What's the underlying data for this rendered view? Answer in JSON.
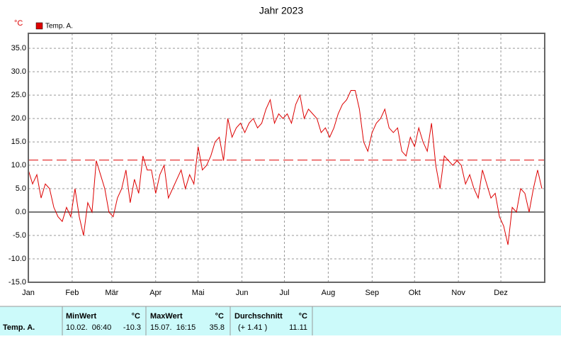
{
  "chart_data": {
    "type": "line",
    "title": "Jahr 2023",
    "y_unit": "°C",
    "series": [
      {
        "name": "Temp. A.",
        "color": "#dd0000",
        "x": [
          0,
          3,
          6,
          9,
          12,
          15,
          18,
          21,
          24,
          27,
          30,
          33,
          36,
          39,
          42,
          45,
          48,
          51,
          54,
          57,
          60,
          63,
          66,
          69,
          72,
          75,
          78,
          81,
          84,
          87,
          90,
          93,
          96,
          99,
          102,
          105,
          108,
          111,
          114,
          117,
          120,
          123,
          126,
          129,
          132,
          135,
          138,
          141,
          144,
          147,
          150,
          153,
          156,
          159,
          162,
          165,
          168,
          171,
          174,
          177,
          180,
          183,
          186,
          189,
          192,
          195,
          198,
          201,
          204,
          207,
          210,
          213,
          216,
          219,
          222,
          225,
          228,
          231,
          234,
          237,
          240,
          243,
          246,
          249,
          252,
          255,
          258,
          261,
          264,
          267,
          270,
          273,
          276,
          279,
          282,
          285,
          288,
          291,
          294,
          297,
          300,
          303,
          306,
          309,
          312,
          315,
          318,
          321,
          324,
          327,
          330,
          333,
          336,
          339,
          342,
          345,
          348,
          351,
          354,
          357,
          360,
          363
        ],
        "values": [
          9,
          6,
          8,
          3,
          6,
          5,
          1,
          -1,
          -2,
          1,
          -1,
          5,
          -1,
          -5,
          2,
          0,
          11,
          8,
          5,
          0,
          -1,
          3,
          5,
          9,
          2,
          7,
          4,
          12,
          9,
          9,
          4,
          8,
          10,
          3,
          5,
          7,
          9,
          5,
          8,
          6,
          14,
          9,
          10,
          12,
          15,
          16,
          11,
          20,
          16,
          18,
          19,
          17,
          19,
          20,
          18,
          19,
          22,
          24,
          19,
          21,
          20,
          21,
          19,
          23,
          25,
          20,
          22,
          21,
          20,
          17,
          18,
          16,
          18,
          21,
          23,
          24,
          26,
          26,
          22,
          15,
          13,
          17,
          19,
          20,
          22,
          18,
          17,
          18,
          13,
          12,
          16,
          14,
          18,
          15,
          13,
          19,
          10,
          5,
          12,
          11,
          10,
          11,
          10,
          6,
          8,
          5,
          3,
          9,
          6,
          3,
          4,
          -1,
          -3,
          -7,
          1,
          0,
          5,
          4,
          0,
          5,
          9,
          5
        ]
      }
    ],
    "xlim": [
      0,
      365
    ],
    "xticks": [
      {
        "value": 0,
        "label": "Jan"
      },
      {
        "value": 31,
        "label": "Feb"
      },
      {
        "value": 59,
        "label": "Mär"
      },
      {
        "value": 90,
        "label": "Apr"
      },
      {
        "value": 120,
        "label": "Mai"
      },
      {
        "value": 151,
        "label": "Jun"
      },
      {
        "value": 181,
        "label": "Jul"
      },
      {
        "value": 212,
        "label": "Aug"
      },
      {
        "value": 243,
        "label": "Sep"
      },
      {
        "value": 273,
        "label": "Okt"
      },
      {
        "value": 304,
        "label": "Nov"
      },
      {
        "value": 334,
        "label": "Dez"
      }
    ],
    "ylim": [
      -15,
      38.2
    ],
    "yticks": [
      {
        "value": -15,
        "label": "-15.0"
      },
      {
        "value": -10,
        "label": "-10.0"
      },
      {
        "value": -5,
        "label": "-5.0"
      },
      {
        "value": 0,
        "label": "0.0"
      },
      {
        "value": 5,
        "label": "5.0"
      },
      {
        "value": 10,
        "label": "10.0"
      },
      {
        "value": 15,
        "label": "15.0"
      },
      {
        "value": 20,
        "label": "20.0"
      },
      {
        "value": 25,
        "label": "25.0"
      },
      {
        "value": 30,
        "label": "30.0"
      },
      {
        "value": 35,
        "label": "35.0"
      }
    ],
    "grid": true
  },
  "table": {
    "row_label": "Temp. A.",
    "min": {
      "header": "MinWert",
      "unit": "°C",
      "time": "10.02.  06:40",
      "value": "-10.3"
    },
    "max": {
      "header": "MaxWert",
      "unit": "°C",
      "time": "15.07.  16:15",
      "value": "35.8"
    },
    "avg": {
      "header": "Durchschnitt",
      "unit": "°C",
      "diff": "(+ 1.41 )",
      "value": 11.11
    }
  }
}
